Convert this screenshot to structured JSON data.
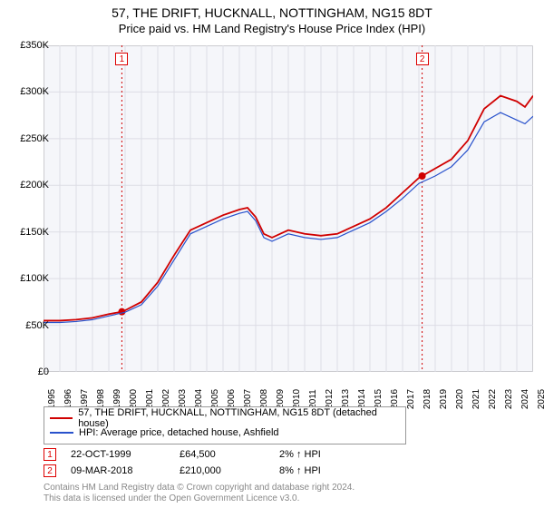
{
  "title": "57, THE DRIFT, HUCKNALL, NOTTINGHAM, NG15 8DT",
  "subtitle": "Price paid vs. HM Land Registry's House Price Index (HPI)",
  "chart": {
    "type": "line",
    "background_color": "#f5f6fa",
    "grid_color": "#dddde5",
    "border_color": "#bbbbbb",
    "ylim": [
      0,
      350000
    ],
    "ytick_step": 50000,
    "y_prefix": "£",
    "y_suffix": "K",
    "xlim": [
      1995,
      2025
    ],
    "x_years": [
      1995,
      1996,
      1997,
      1998,
      1999,
      2000,
      2001,
      2002,
      2003,
      2004,
      2005,
      2006,
      2007,
      2008,
      2009,
      2010,
      2011,
      2012,
      2013,
      2014,
      2015,
      2016,
      2017,
      2018,
      2019,
      2020,
      2021,
      2022,
      2023,
      2024,
      2025
    ],
    "series": [
      {
        "name": "price_paid",
        "label": "57, THE DRIFT, HUCKNALL, NOTTINGHAM, NG15 8DT (detached house)",
        "color": "#d00000",
        "width": 1.8,
        "data": [
          [
            1995,
            55000
          ],
          [
            1996,
            55000
          ],
          [
            1997,
            56000
          ],
          [
            1998,
            58000
          ],
          [
            1999,
            62000
          ],
          [
            1999.8,
            64500
          ],
          [
            2000,
            66000
          ],
          [
            2001,
            75000
          ],
          [
            2002,
            96000
          ],
          [
            2003,
            125000
          ],
          [
            2004,
            152000
          ],
          [
            2005,
            160000
          ],
          [
            2006,
            168000
          ],
          [
            2007,
            174000
          ],
          [
            2007.5,
            176000
          ],
          [
            2008,
            166000
          ],
          [
            2008.5,
            148000
          ],
          [
            2009,
            144000
          ],
          [
            2010,
            152000
          ],
          [
            2011,
            148000
          ],
          [
            2012,
            146000
          ],
          [
            2013,
            148000
          ],
          [
            2014,
            156000
          ],
          [
            2015,
            164000
          ],
          [
            2016,
            176000
          ],
          [
            2017,
            192000
          ],
          [
            2018,
            208000
          ],
          [
            2018.2,
            210000
          ],
          [
            2019,
            218000
          ],
          [
            2020,
            228000
          ],
          [
            2021,
            248000
          ],
          [
            2022,
            282000
          ],
          [
            2023,
            296000
          ],
          [
            2024,
            290000
          ],
          [
            2024.5,
            284000
          ],
          [
            2025,
            296000
          ]
        ]
      },
      {
        "name": "hpi",
        "label": "HPI: Average price, detached house, Ashfield",
        "color": "#2952cc",
        "width": 1.2,
        "data": [
          [
            1995,
            53000
          ],
          [
            1996,
            53000
          ],
          [
            1997,
            54000
          ],
          [
            1998,
            56000
          ],
          [
            1999,
            60000
          ],
          [
            2000,
            64000
          ],
          [
            2001,
            72000
          ],
          [
            2002,
            92000
          ],
          [
            2003,
            120000
          ],
          [
            2004,
            148000
          ],
          [
            2005,
            156000
          ],
          [
            2006,
            164000
          ],
          [
            2007,
            170000
          ],
          [
            2007.5,
            172000
          ],
          [
            2008,
            162000
          ],
          [
            2008.5,
            144000
          ],
          [
            2009,
            140000
          ],
          [
            2010,
            148000
          ],
          [
            2011,
            144000
          ],
          [
            2012,
            142000
          ],
          [
            2013,
            144000
          ],
          [
            2014,
            152000
          ],
          [
            2015,
            160000
          ],
          [
            2016,
            172000
          ],
          [
            2017,
            186000
          ],
          [
            2018,
            202000
          ],
          [
            2019,
            210000
          ],
          [
            2020,
            220000
          ],
          [
            2021,
            238000
          ],
          [
            2022,
            268000
          ],
          [
            2023,
            278000
          ],
          [
            2024,
            270000
          ],
          [
            2024.5,
            266000
          ],
          [
            2025,
            274000
          ]
        ]
      }
    ],
    "event_markers": [
      {
        "id": "1",
        "year": 1999.8,
        "value": 64500
      },
      {
        "id": "2",
        "year": 2018.2,
        "value": 210000
      }
    ],
    "marker_line_color": "#d00000",
    "marker_dot_color": "#d00000"
  },
  "legend": {
    "items": [
      {
        "color": "#d00000",
        "label": "57, THE DRIFT, HUCKNALL, NOTTINGHAM, NG15 8DT (detached house)"
      },
      {
        "color": "#2952cc",
        "label": "HPI: Average price, detached house, Ashfield"
      }
    ]
  },
  "sales": [
    {
      "id": "1",
      "date": "22-OCT-1999",
      "price": "£64,500",
      "diff": "2% ↑ HPI"
    },
    {
      "id": "2",
      "date": "09-MAR-2018",
      "price": "£210,000",
      "diff": "8% ↑ HPI"
    }
  ],
  "copyright": {
    "line1": "Contains HM Land Registry data © Crown copyright and database right 2024.",
    "line2": "This data is licensed under the Open Government Licence v3.0."
  }
}
